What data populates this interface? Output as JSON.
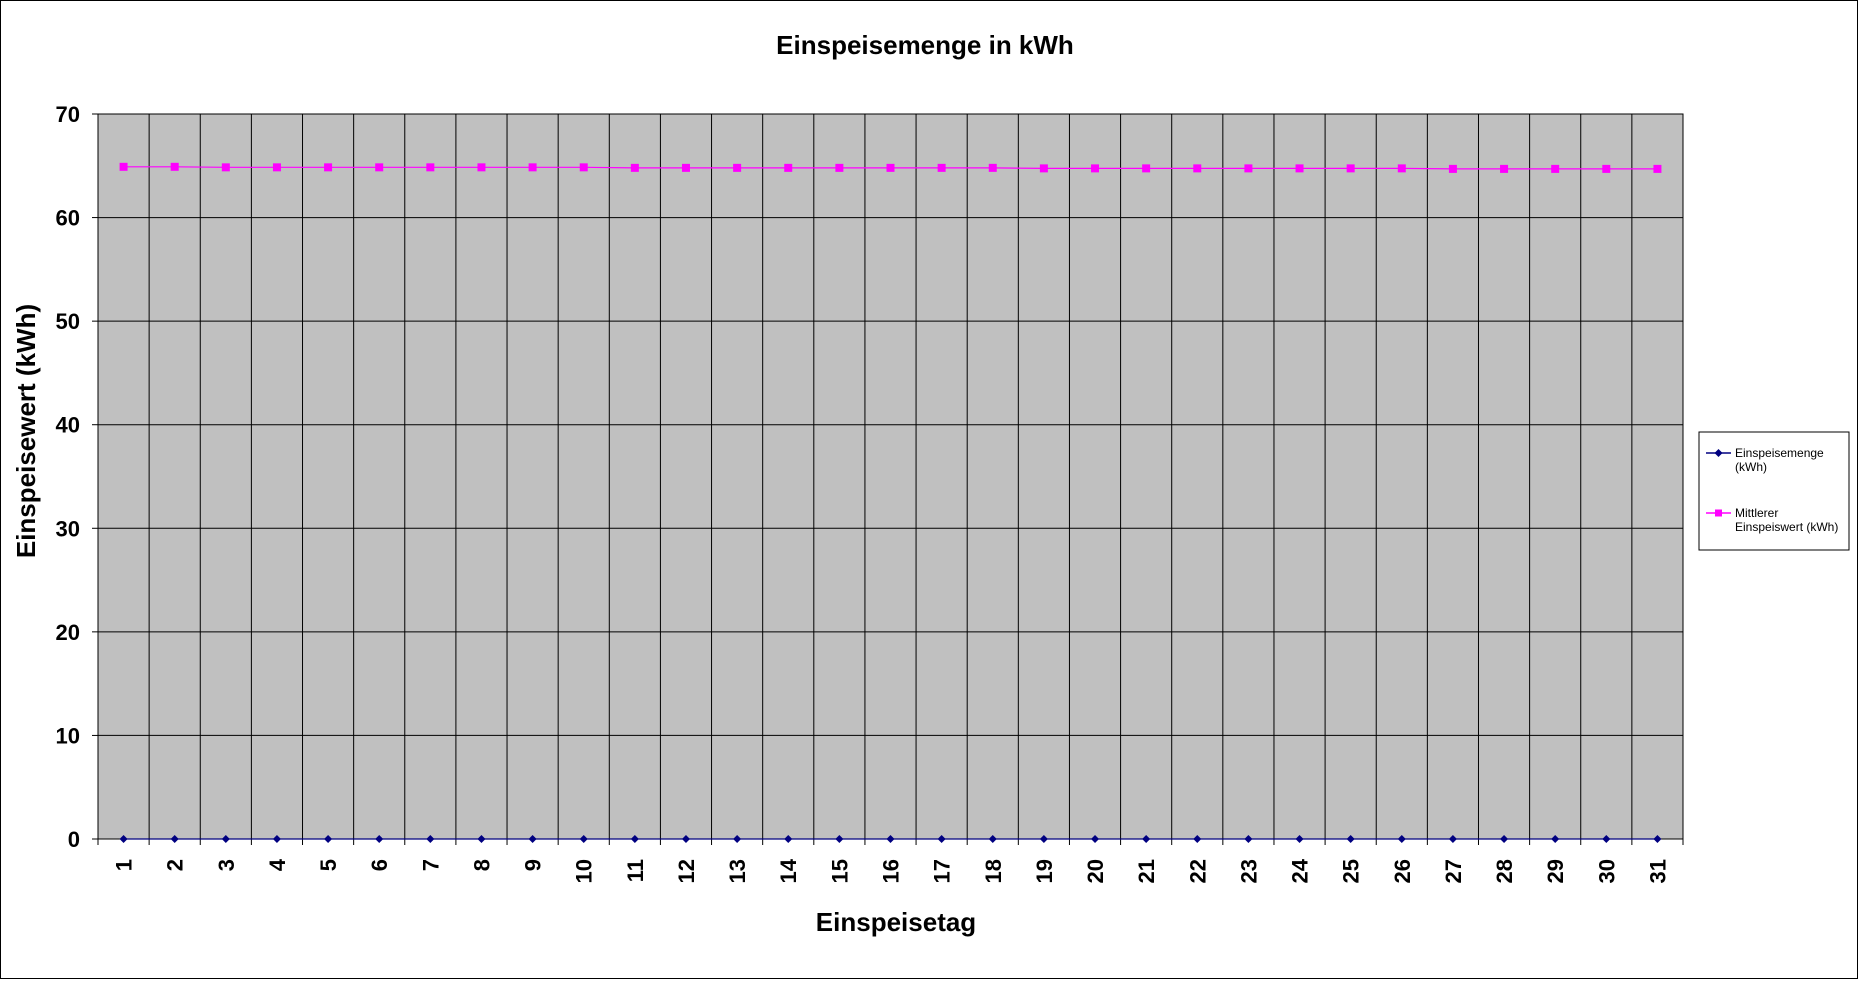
{
  "colors": {
    "plot_background": "#c0c0c0",
    "gridline": "#000000",
    "series_1": "#000080",
    "series_2": "#ff00ff"
  },
  "chart_data": {
    "type": "line",
    "title": "Einspeisemenge in kWh",
    "xlabel": "Einspeisetag",
    "ylabel": "Einspeisewert  (kWh)",
    "ylim": [
      0,
      70
    ],
    "yticks": [
      "0",
      "10",
      "20",
      "30",
      "40",
      "50",
      "60",
      "70"
    ],
    "categories": [
      "1",
      "2",
      "3",
      "4",
      "5",
      "6",
      "7",
      "8",
      "9",
      "10",
      "11",
      "12",
      "13",
      "14",
      "15",
      "16",
      "17",
      "18",
      "19",
      "20",
      "21",
      "22",
      "23",
      "24",
      "25",
      "26",
      "27",
      "28",
      "29",
      "30",
      "31"
    ],
    "grid": true,
    "legend_position": "right",
    "series": [
      {
        "name": "Einspeisemenge (kWh)",
        "legend_lines": [
          "Einspeisemenge",
          "(kWh)"
        ],
        "marker": "diamond",
        "values": [
          0,
          0,
          0,
          0,
          0,
          0,
          0,
          0,
          0,
          0,
          0,
          0,
          0,
          0,
          0,
          0,
          0,
          0,
          0,
          0,
          0,
          0,
          0,
          0,
          0,
          0,
          0,
          0,
          0,
          0,
          0
        ]
      },
      {
        "name": "Mittlerer Einspeiswert (kWh)",
        "legend_lines": [
          "Mittlerer",
          "Einspeiswert (kWh)"
        ],
        "marker": "square",
        "values": [
          64.9,
          64.9,
          64.85,
          64.85,
          64.85,
          64.85,
          64.85,
          64.85,
          64.85,
          64.85,
          64.8,
          64.8,
          64.8,
          64.8,
          64.8,
          64.8,
          64.8,
          64.8,
          64.75,
          64.75,
          64.75,
          64.75,
          64.75,
          64.75,
          64.75,
          64.75,
          64.7,
          64.7,
          64.7,
          64.7,
          64.7
        ]
      }
    ]
  }
}
